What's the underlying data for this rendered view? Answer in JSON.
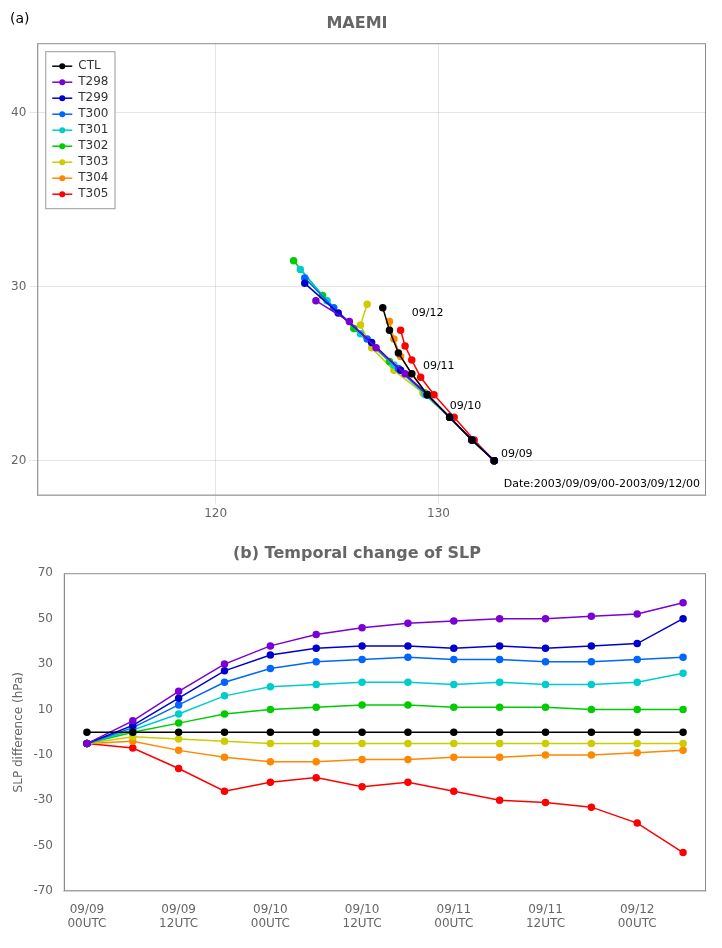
{
  "chart_data": [
    {
      "type": "line",
      "title": "MAEMI",
      "panel_label": "(a)",
      "marker": "circle",
      "legend": "upper left",
      "grid": true,
      "xlim": [
        112,
        142
      ],
      "ylim": [
        18,
        44
      ],
      "xticks": [
        120,
        130
      ],
      "yticks": [
        20,
        30,
        40
      ],
      "annotations": [
        {
          "text": "09/09",
          "x": 132.8,
          "y": 20.2
        },
        {
          "text": "09/10",
          "x": 130.5,
          "y": 23.0
        },
        {
          "text": "09/11",
          "x": 129.3,
          "y": 25.3
        },
        {
          "text": "09/12",
          "x": 128.8,
          "y": 28.3
        },
        {
          "text": "Date:2003/09/09/00-2003/09/12/00"
        }
      ],
      "series": [
        {
          "name": "CTL",
          "color": "#000000",
          "x": [
            132.5,
            131.5,
            130.5,
            129.5,
            128.8,
            128.2,
            127.8,
            127.5
          ],
          "values": [
            20.0,
            21.2,
            22.5,
            23.8,
            25.0,
            26.2,
            27.5,
            28.8
          ]
        },
        {
          "name": "T298",
          "color": "#7B00D4",
          "x": [
            132.5,
            131.5,
            130.5,
            129.5,
            128.5,
            127.2,
            126.0,
            124.5
          ],
          "values": [
            20.0,
            21.2,
            22.5,
            23.8,
            25.0,
            26.5,
            28.0,
            29.2
          ]
        },
        {
          "name": "T299",
          "color": "#0000CC",
          "x": [
            132.5,
            131.5,
            130.5,
            129.5,
            128.3,
            127.0,
            125.5,
            124.0
          ],
          "values": [
            20.0,
            21.2,
            22.5,
            23.8,
            25.2,
            26.8,
            28.5,
            30.2
          ]
        },
        {
          "name": "T300",
          "color": "#0066FF",
          "x": [
            132.5,
            131.5,
            130.5,
            129.5,
            128.2,
            126.8,
            125.3,
            124.0
          ],
          "values": [
            20.0,
            21.2,
            22.5,
            23.8,
            25.3,
            27.0,
            28.8,
            30.5
          ]
        },
        {
          "name": "T301",
          "color": "#00CCCC",
          "x": [
            132.5,
            131.5,
            130.5,
            129.4,
            128.0,
            126.5,
            125.0,
            123.8
          ],
          "values": [
            20.0,
            21.2,
            22.5,
            23.8,
            25.5,
            27.3,
            29.2,
            31.0
          ]
        },
        {
          "name": "T302",
          "color": "#00CC00",
          "x": [
            132.5,
            131.5,
            130.5,
            129.4,
            127.8,
            126.2,
            124.8,
            123.5
          ],
          "values": [
            20.0,
            21.2,
            22.5,
            23.9,
            25.7,
            27.6,
            29.5,
            31.5
          ]
        },
        {
          "name": "T303",
          "color": "#CCCC00",
          "x": [
            132.5,
            131.5,
            130.5,
            129.3,
            128.0,
            127.0,
            126.5,
            126.8
          ],
          "values": [
            20.0,
            21.2,
            22.5,
            23.9,
            25.2,
            26.5,
            27.8,
            29.0
          ]
        },
        {
          "name": "T304",
          "color": "#FF8800",
          "x": [
            132.5,
            131.5,
            130.5,
            129.5,
            128.8,
            128.3,
            128.0,
            127.8
          ],
          "values": [
            20.0,
            21.2,
            22.5,
            23.8,
            25.0,
            26.0,
            27.0,
            28.0
          ]
        },
        {
          "name": "T305",
          "color": "#FF0000",
          "x": [
            132.5,
            131.6,
            130.7,
            129.8,
            129.2,
            128.8,
            128.5,
            128.3
          ],
          "values": [
            20.0,
            21.2,
            22.5,
            23.8,
            24.8,
            25.8,
            26.6,
            27.5
          ]
        }
      ]
    },
    {
      "type": "line",
      "title": "(b) Temporal change of SLP",
      "ylabel": "SLP difference (hPa)",
      "marker": "circle",
      "grid": false,
      "x": [
        0,
        1,
        2,
        3,
        4,
        5,
        6,
        7,
        8,
        9,
        10,
        11,
        12,
        13
      ],
      "xlim": [
        -0.5,
        13.5
      ],
      "ylim": [
        -70,
        70
      ],
      "xticks": [
        {
          "value": 0,
          "label": "09/09\n00UTC"
        },
        {
          "value": 2,
          "label": "09/09\n12UTC"
        },
        {
          "value": 4,
          "label": "09/10\n00UTC"
        },
        {
          "value": 6,
          "label": "09/10\n12UTC"
        },
        {
          "value": 8,
          "label": "09/11\n00UTC"
        },
        {
          "value": 10,
          "label": "09/11\n12UTC"
        },
        {
          "value": 12,
          "label": "09/12\n00UTC"
        }
      ],
      "yticks": [
        -70,
        -50,
        -30,
        -10,
        10,
        30,
        50,
        70
      ],
      "series": [
        {
          "name": "CTL",
          "color": "#000000",
          "values": [
            0,
            0,
            0,
            0,
            0,
            0,
            0,
            0,
            0,
            0,
            0,
            0,
            0,
            0
          ]
        },
        {
          "name": "T298",
          "color": "#7B00D4",
          "values": [
            -5,
            5,
            18,
            30,
            38,
            43,
            46,
            48,
            49,
            50,
            50,
            51,
            52,
            57
          ]
        },
        {
          "name": "T299",
          "color": "#0000CC",
          "values": [
            -5,
            3,
            15,
            27,
            34,
            37,
            38,
            38,
            37,
            38,
            37,
            38,
            39,
            50
          ]
        },
        {
          "name": "T300",
          "color": "#0066FF",
          "values": [
            -5,
            2,
            12,
            22,
            28,
            31,
            32,
            33,
            32,
            32,
            31,
            31,
            32,
            33
          ]
        },
        {
          "name": "T301",
          "color": "#00CCCC",
          "values": [
            -5,
            1,
            8,
            16,
            20,
            21,
            22,
            22,
            21,
            22,
            21,
            21,
            22,
            26
          ]
        },
        {
          "name": "T302",
          "color": "#00CC00",
          "values": [
            -5,
            0,
            4,
            8,
            10,
            11,
            12,
            12,
            11,
            11,
            11,
            10,
            10,
            10
          ]
        },
        {
          "name": "T303",
          "color": "#CCCC00",
          "values": [
            -5,
            -2,
            -3,
            -4,
            -5,
            -5,
            -5,
            -5,
            -5,
            -5,
            -5,
            -5,
            -5,
            -5
          ]
        },
        {
          "name": "T304",
          "color": "#FF8800",
          "values": [
            -5,
            -4,
            -8,
            -11,
            -13,
            -13,
            -12,
            -12,
            -11,
            -11,
            -10,
            -10,
            -9,
            -8
          ]
        },
        {
          "name": "T305",
          "color": "#FF0000",
          "values": [
            -5,
            -7,
            -16,
            -26,
            -22,
            -20,
            -24,
            -22,
            -26,
            -30,
            -31,
            -33,
            -40,
            -53
          ]
        }
      ]
    }
  ]
}
